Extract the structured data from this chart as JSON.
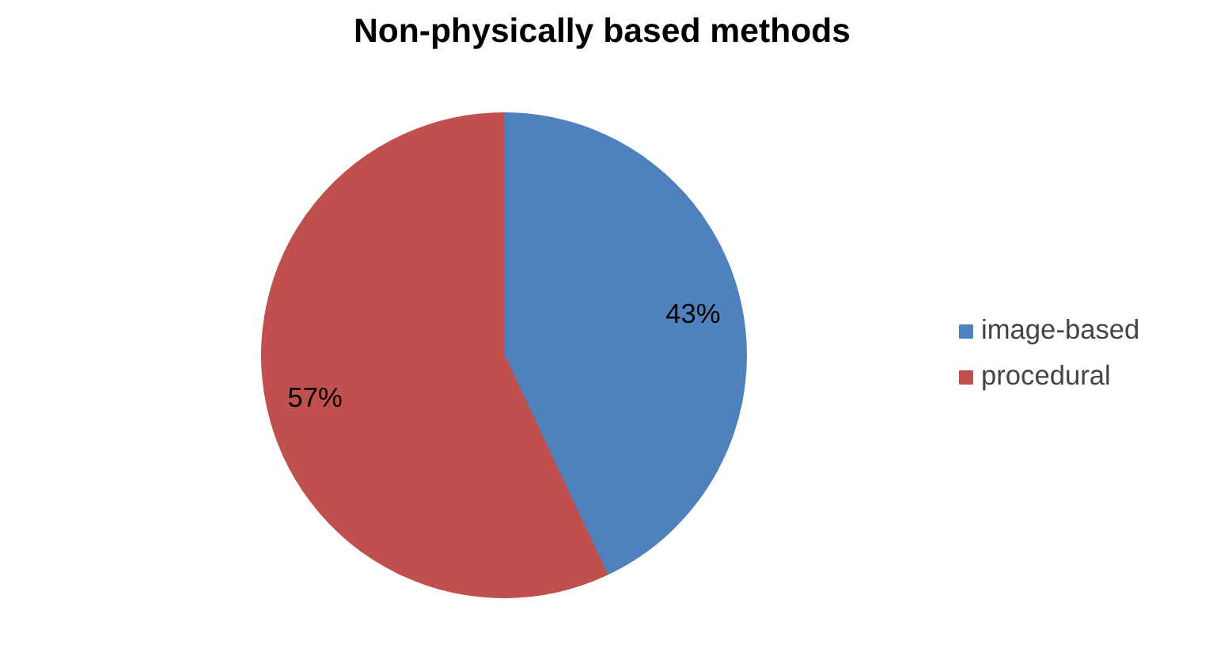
{
  "chart_data": {
    "type": "pie",
    "title": "Non-physically based methods",
    "categories": [
      "image-based",
      "procedural"
    ],
    "values": [
      43,
      57
    ],
    "colors": [
      "#4f81bd",
      "#c0504d"
    ],
    "value_labels": [
      "43%",
      "57%"
    ],
    "legend": "right"
  }
}
